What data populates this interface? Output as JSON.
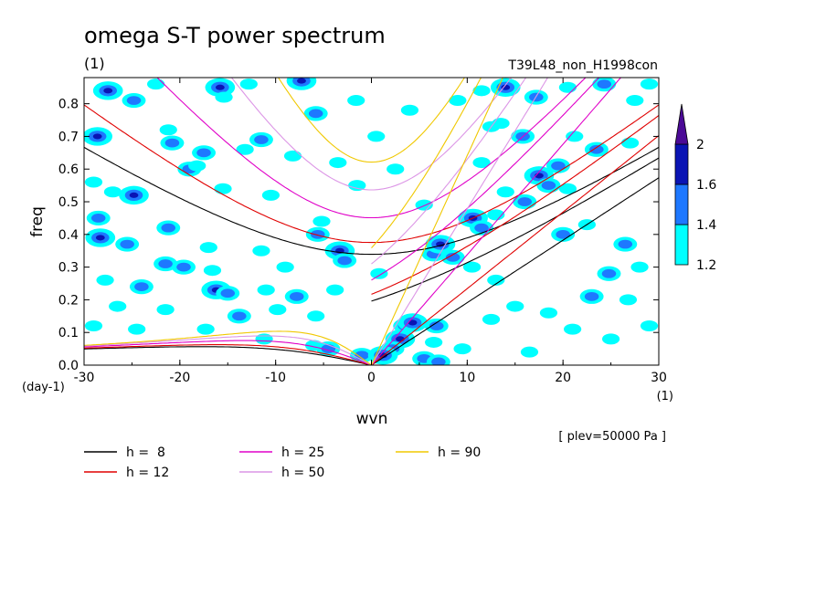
{
  "chart_data": {
    "type": "heatmap",
    "title": "omega S-T power spectrum",
    "subtitle": "(1)",
    "run_label": "T39L48_non_H1998con",
    "xlabel": "wvn",
    "x_unit": "(1)",
    "ylabel": "freq",
    "y_unit": "(day-1)",
    "plev_label": "[ plev=50000 Pa ]",
    "xlim": [
      -30,
      30
    ],
    "ylim": [
      0,
      0.88
    ],
    "x_ticks": [
      {
        "v": -30,
        "label": "-30"
      },
      {
        "v": -20,
        "label": "-20"
      },
      {
        "v": -10,
        "label": "-10"
      },
      {
        "v": 0,
        "label": "0"
      },
      {
        "v": 10,
        "label": "10"
      },
      {
        "v": 20,
        "label": "20"
      },
      {
        "v": 30,
        "label": "30"
      }
    ],
    "y_ticks": [
      {
        "v": 0.0,
        "label": "0.0"
      },
      {
        "v": 0.1,
        "label": "0.1"
      },
      {
        "v": 0.2,
        "label": "0.2"
      },
      {
        "v": 0.3,
        "label": "0.3"
      },
      {
        "v": 0.4,
        "label": "0.4"
      },
      {
        "v": 0.5,
        "label": "0.5"
      },
      {
        "v": 0.6,
        "label": "0.6"
      },
      {
        "v": 0.7,
        "label": "0.7"
      },
      {
        "v": 0.8,
        "label": "0.8"
      }
    ],
    "colorbar": {
      "levels": [
        {
          "label": "1.2",
          "value": 1.2
        },
        {
          "label": "1.4",
          "value": 1.4
        },
        {
          "label": "1.6",
          "value": 1.6
        },
        {
          "label": "2",
          "value": 2.0
        }
      ],
      "colors": [
        "#00ffff",
        "#1e78ff",
        "#0a14b4",
        "#4b0a96"
      ]
    },
    "dispersion_curves": [
      {
        "name": "h =  8",
        "h": 8,
        "color": "#000000"
      },
      {
        "name": "h = 12",
        "h": 12,
        "color": "#e00000"
      },
      {
        "name": "h = 25",
        "h": 25,
        "color": "#e000c8"
      },
      {
        "name": "h = 50",
        "h": 50,
        "color": "#dc96e6"
      },
      {
        "name": "h = 90",
        "h": 90,
        "color": "#f0c800"
      }
    ],
    "power_blobs": [
      {
        "k": -27.5,
        "f": 0.84,
        "level": 3
      },
      {
        "k": -24.8,
        "f": 0.81,
        "level": 2
      },
      {
        "k": -22.5,
        "f": 0.86,
        "level": 1
      },
      {
        "k": -20.8,
        "f": 0.68,
        "level": 2
      },
      {
        "k": -15.8,
        "f": 0.85,
        "level": 3
      },
      {
        "k": -15.4,
        "f": 0.82,
        "level": 1
      },
      {
        "k": -12.8,
        "f": 0.86,
        "level": 1
      },
      {
        "k": -7.3,
        "f": 0.87,
        "level": 3
      },
      {
        "k": -5.8,
        "f": 0.77,
        "level": 2
      },
      {
        "k": -1.6,
        "f": 0.81,
        "level": 1
      },
      {
        "k": -28.6,
        "f": 0.7,
        "level": 3
      },
      {
        "k": -21.2,
        "f": 0.72,
        "level": 1
      },
      {
        "k": -17.5,
        "f": 0.65,
        "level": 2
      },
      {
        "k": -13.2,
        "f": 0.66,
        "level": 1
      },
      {
        "k": -11.5,
        "f": 0.69,
        "level": 2
      },
      {
        "k": -8.2,
        "f": 0.64,
        "level": 1
      },
      {
        "k": -19.0,
        "f": 0.6,
        "level": 2
      },
      {
        "k": -18.2,
        "f": 0.61,
        "level": 1
      },
      {
        "k": -24.8,
        "f": 0.52,
        "level": 3
      },
      {
        "k": -27.0,
        "f": 0.53,
        "level": 1
      },
      {
        "k": -29.0,
        "f": 0.56,
        "level": 1
      },
      {
        "k": -15.5,
        "f": 0.54,
        "level": 1
      },
      {
        "k": -10.5,
        "f": 0.52,
        "level": 1
      },
      {
        "k": -28.5,
        "f": 0.45,
        "level": 2
      },
      {
        "k": -21.2,
        "f": 0.42,
        "level": 2
      },
      {
        "k": -25.5,
        "f": 0.37,
        "level": 2
      },
      {
        "k": -28.3,
        "f": 0.39,
        "level": 3
      },
      {
        "k": -17.0,
        "f": 0.36,
        "level": 1
      },
      {
        "k": -11.5,
        "f": 0.35,
        "level": 1
      },
      {
        "k": -3.3,
        "f": 0.35,
        "level": 3
      },
      {
        "k": -2.8,
        "f": 0.32,
        "level": 2
      },
      {
        "k": -5.6,
        "f": 0.4,
        "level": 2
      },
      {
        "k": -5.2,
        "f": 0.44,
        "level": 1
      },
      {
        "k": -9.0,
        "f": 0.3,
        "level": 1
      },
      {
        "k": -21.5,
        "f": 0.31,
        "level": 2
      },
      {
        "k": -19.6,
        "f": 0.3,
        "level": 2
      },
      {
        "k": -16.6,
        "f": 0.29,
        "level": 1
      },
      {
        "k": -24.0,
        "f": 0.24,
        "level": 2
      },
      {
        "k": -27.8,
        "f": 0.26,
        "level": 1
      },
      {
        "k": -16.2,
        "f": 0.23,
        "level": 3
      },
      {
        "k": -15.0,
        "f": 0.22,
        "level": 2
      },
      {
        "k": -11.0,
        "f": 0.23,
        "level": 1
      },
      {
        "k": -7.8,
        "f": 0.21,
        "level": 2
      },
      {
        "k": -3.8,
        "f": 0.23,
        "level": 1
      },
      {
        "k": -26.5,
        "f": 0.18,
        "level": 1
      },
      {
        "k": -21.5,
        "f": 0.17,
        "level": 1
      },
      {
        "k": -13.8,
        "f": 0.15,
        "level": 2
      },
      {
        "k": -9.8,
        "f": 0.17,
        "level": 1
      },
      {
        "k": -5.8,
        "f": 0.15,
        "level": 1
      },
      {
        "k": -29.0,
        "f": 0.12,
        "level": 1
      },
      {
        "k": -24.5,
        "f": 0.11,
        "level": 1
      },
      {
        "k": -17.3,
        "f": 0.11,
        "level": 1
      },
      {
        "k": -11.2,
        "f": 0.08,
        "level": 1
      },
      {
        "k": -6.0,
        "f": 0.06,
        "level": 1
      },
      {
        "k": -4.5,
        "f": 0.05,
        "level": 2
      },
      {
        "k": -1.0,
        "f": 0.03,
        "level": 2
      },
      {
        "k": 3.5,
        "f": 0.12,
        "level": 2
      },
      {
        "k": 4.3,
        "f": 0.13,
        "level": 3
      },
      {
        "k": 3.0,
        "f": 0.08,
        "level": 3
      },
      {
        "k": 2.2,
        "f": 0.05,
        "level": 2
      },
      {
        "k": 1.2,
        "f": 0.03,
        "level": 3
      },
      {
        "k": 6.8,
        "f": 0.12,
        "level": 2
      },
      {
        "k": 6.5,
        "f": 0.07,
        "level": 1
      },
      {
        "k": 5.5,
        "f": 0.02,
        "level": 2
      },
      {
        "k": 7.0,
        "f": 0.01,
        "level": 2
      },
      {
        "k": 9.5,
        "f": 0.05,
        "level": 1
      },
      {
        "k": 6.5,
        "f": 0.34,
        "level": 2
      },
      {
        "k": 7.2,
        "f": 0.37,
        "level": 3
      },
      {
        "k": 8.5,
        "f": 0.33,
        "level": 2
      },
      {
        "k": 10.5,
        "f": 0.3,
        "level": 1
      },
      {
        "k": 10.6,
        "f": 0.45,
        "level": 3
      },
      {
        "k": 11.5,
        "f": 0.42,
        "level": 2
      },
      {
        "k": 13.0,
        "f": 0.46,
        "level": 1
      },
      {
        "k": 5.5,
        "f": 0.49,
        "level": 1
      },
      {
        "k": 14.0,
        "f": 0.53,
        "level": 1
      },
      {
        "k": 16.0,
        "f": 0.5,
        "level": 2
      },
      {
        "k": 17.5,
        "f": 0.58,
        "level": 3
      },
      {
        "k": 18.5,
        "f": 0.55,
        "level": 2
      },
      {
        "k": 19.5,
        "f": 0.61,
        "level": 2
      },
      {
        "k": 20.5,
        "f": 0.54,
        "level": 1
      },
      {
        "k": 11.5,
        "f": 0.62,
        "level": 1
      },
      {
        "k": 15.8,
        "f": 0.7,
        "level": 2
      },
      {
        "k": 13.5,
        "f": 0.74,
        "level": 1
      },
      {
        "k": 21.2,
        "f": 0.7,
        "level": 1
      },
      {
        "k": 23.5,
        "f": 0.66,
        "level": 2
      },
      {
        "k": 27.0,
        "f": 0.68,
        "level": 1
      },
      {
        "k": 9.0,
        "f": 0.81,
        "level": 1
      },
      {
        "k": 11.5,
        "f": 0.84,
        "level": 1
      },
      {
        "k": 14.0,
        "f": 0.85,
        "level": 3
      },
      {
        "k": 17.2,
        "f": 0.82,
        "level": 2
      },
      {
        "k": 20.5,
        "f": 0.85,
        "level": 1
      },
      {
        "k": 24.3,
        "f": 0.86,
        "level": 2
      },
      {
        "k": 27.5,
        "f": 0.81,
        "level": 1
      },
      {
        "k": 29.0,
        "f": 0.86,
        "level": 1
      },
      {
        "k": 12.5,
        "f": 0.73,
        "level": 1
      },
      {
        "k": 20.0,
        "f": 0.4,
        "level": 2
      },
      {
        "k": 22.5,
        "f": 0.43,
        "level": 1
      },
      {
        "k": 26.5,
        "f": 0.37,
        "level": 2
      },
      {
        "k": 24.8,
        "f": 0.28,
        "level": 2
      },
      {
        "k": 28.0,
        "f": 0.3,
        "level": 1
      },
      {
        "k": 23.0,
        "f": 0.21,
        "level": 2
      },
      {
        "k": 26.8,
        "f": 0.2,
        "level": 1
      },
      {
        "k": 18.5,
        "f": 0.16,
        "level": 1
      },
      {
        "k": 15.0,
        "f": 0.18,
        "level": 1
      },
      {
        "k": 12.5,
        "f": 0.14,
        "level": 1
      },
      {
        "k": 21.0,
        "f": 0.11,
        "level": 1
      },
      {
        "k": 25.0,
        "f": 0.08,
        "level": 1
      },
      {
        "k": 29.0,
        "f": 0.12,
        "level": 1
      },
      {
        "k": 16.5,
        "f": 0.04,
        "level": 1
      },
      {
        "k": 13.0,
        "f": 0.26,
        "level": 1
      },
      {
        "k": 0.8,
        "f": 0.28,
        "level": 1
      },
      {
        "k": -1.5,
        "f": 0.55,
        "level": 1
      },
      {
        "k": 2.5,
        "f": 0.6,
        "level": 1
      },
      {
        "k": -3.5,
        "f": 0.62,
        "level": 1
      },
      {
        "k": 4.0,
        "f": 0.78,
        "level": 1
      },
      {
        "k": 0.5,
        "f": 0.7,
        "level": 1
      }
    ]
  }
}
